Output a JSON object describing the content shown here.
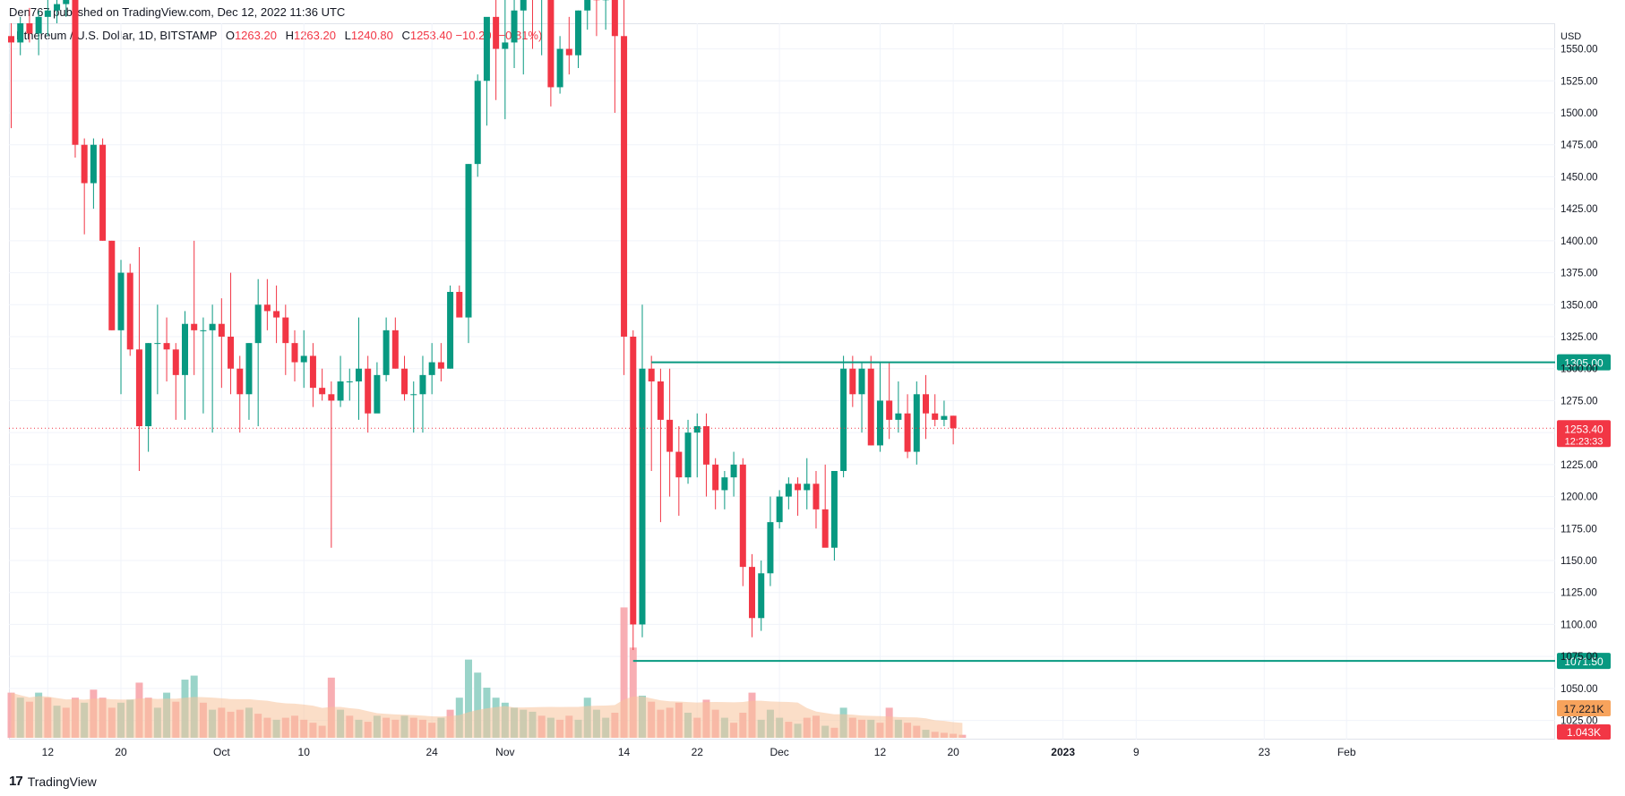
{
  "header": {
    "published": "Den767 published on TradingView.com, Dec 12, 2022 11:36 UTC"
  },
  "legend": {
    "symbol": "Ethereum / U.S. Dollar, 1D, BITSTAMP",
    "o_label": "O",
    "o": "1263.20",
    "h_label": "H",
    "h": "1263.20",
    "l_label": "L",
    "l": "1240.80",
    "c_label": "C",
    "c": "1253.40",
    "change": "−10.20 (−0.81%)"
  },
  "footer": {
    "brand": "TradingView",
    "brand_icon": "tradingview-logo-icon"
  },
  "colors": {
    "up": "#089981",
    "down": "#f23645",
    "level": "#089981",
    "vol_up": "#8fcfc3",
    "vol_down": "#f7a5ab",
    "vol_ma": "#f7c39a"
  },
  "chart_data": {
    "type": "candlestick",
    "currency": "USD",
    "y_range": [
      1010,
      1570
    ],
    "y_ticks": [
      "1550.00",
      "1525.00",
      "1500.00",
      "1475.00",
      "1450.00",
      "1425.00",
      "1400.00",
      "1375.00",
      "1350.00",
      "1325.00",
      "1300.00",
      "1275.00",
      "1250.00",
      "1225.00",
      "1200.00",
      "1175.00",
      "1150.00",
      "1125.00",
      "1100.00",
      "1075.00",
      "1050.00",
      "1025.00"
    ],
    "y_tick_values": [
      1550,
      1525,
      1500,
      1475,
      1450,
      1425,
      1400,
      1375,
      1350,
      1325,
      1300,
      1275,
      1250,
      1225,
      1200,
      1175,
      1150,
      1125,
      1100,
      1075,
      1050,
      1025
    ],
    "x_ticks": [
      {
        "label": "12",
        "date": "2022-09-12"
      },
      {
        "label": "20",
        "date": "2022-09-20"
      },
      {
        "label": "Oct",
        "date": "2022-10-01"
      },
      {
        "label": "10",
        "date": "2022-10-10"
      },
      {
        "label": "24",
        "date": "2022-10-24"
      },
      {
        "label": "Nov",
        "date": "2022-11-01"
      },
      {
        "label": "14",
        "date": "2022-11-14"
      },
      {
        "label": "22",
        "date": "2022-11-22"
      },
      {
        "label": "Dec",
        "date": "2022-12-01"
      },
      {
        "label": "12",
        "date": "2022-12-12"
      },
      {
        "label": "20",
        "date": "2022-12-20"
      },
      {
        "label": "2023",
        "date": "2023-01-01"
      },
      {
        "label": "9",
        "date": "2023-01-09"
      },
      {
        "label": "23",
        "date": "2023-01-23"
      },
      {
        "label": "Feb",
        "date": "2023-02-01"
      }
    ],
    "first_date": "2022-09-08",
    "candles": [
      [
        1560,
        1570,
        1488,
        1555
      ],
      [
        1555,
        1575,
        1545,
        1570
      ],
      [
        1570,
        1582,
        1555,
        1562
      ],
      [
        1562,
        1580,
        1545,
        1575
      ],
      [
        1575,
        1590,
        1560,
        1580
      ],
      [
        1580,
        1598,
        1570,
        1585
      ],
      [
        1585,
        1600,
        1575,
        1590
      ],
      [
        1590,
        1605,
        1465,
        1475
      ],
      [
        1475,
        1480,
        1405,
        1445
      ],
      [
        1445,
        1480,
        1425,
        1475
      ],
      [
        1475,
        1480,
        1400,
        1400
      ],
      [
        1400,
        1400,
        1330,
        1330
      ],
      [
        1330,
        1385,
        1280,
        1375
      ],
      [
        1375,
        1382,
        1310,
        1315
      ],
      [
        1315,
        1395,
        1220,
        1255
      ],
      [
        1255,
        1320,
        1235,
        1320
      ],
      [
        1320,
        1350,
        1280,
        1320
      ],
      [
        1320,
        1340,
        1290,
        1315
      ],
      [
        1315,
        1320,
        1260,
        1295
      ],
      [
        1295,
        1345,
        1260,
        1335
      ],
      [
        1335,
        1400,
        1295,
        1330
      ],
      [
        1330,
        1340,
        1265,
        1330
      ],
      [
        1330,
        1350,
        1250,
        1335
      ],
      [
        1335,
        1355,
        1285,
        1325
      ],
      [
        1325,
        1375,
        1280,
        1300
      ],
      [
        1300,
        1310,
        1250,
        1280
      ],
      [
        1280,
        1320,
        1260,
        1320
      ],
      [
        1320,
        1370,
        1255,
        1350
      ],
      [
        1350,
        1370,
        1330,
        1345
      ],
      [
        1345,
        1365,
        1320,
        1340
      ],
      [
        1340,
        1350,
        1295,
        1320
      ],
      [
        1320,
        1330,
        1290,
        1305
      ],
      [
        1305,
        1330,
        1285,
        1310
      ],
      [
        1310,
        1320,
        1270,
        1285
      ],
      [
        1285,
        1300,
        1275,
        1280
      ],
      [
        1280,
        1290,
        1160,
        1275
      ],
      [
        1275,
        1310,
        1270,
        1290
      ],
      [
        1290,
        1300,
        1275,
        1290
      ],
      [
        1290,
        1340,
        1260,
        1300
      ],
      [
        1300,
        1310,
        1250,
        1265
      ],
      [
        1265,
        1305,
        1270,
        1295
      ],
      [
        1295,
        1340,
        1290,
        1330
      ],
      [
        1330,
        1340,
        1300,
        1300
      ],
      [
        1300,
        1310,
        1275,
        1280
      ],
      [
        1280,
        1290,
        1250,
        1280
      ],
      [
        1280,
        1310,
        1250,
        1295
      ],
      [
        1295,
        1320,
        1280,
        1305
      ],
      [
        1305,
        1320,
        1290,
        1300
      ],
      [
        1300,
        1365,
        1300,
        1360
      ],
      [
        1360,
        1365,
        1345,
        1340
      ],
      [
        1340,
        1460,
        1320,
        1460
      ],
      [
        1460,
        1530,
        1450,
        1525
      ],
      [
        1525,
        1570,
        1490,
        1575
      ],
      [
        1575,
        1600,
        1510,
        1550
      ],
      [
        1550,
        1600,
        1495,
        1555
      ],
      [
        1555,
        1590,
        1535,
        1580
      ],
      [
        1580,
        1600,
        1530,
        1600
      ],
      [
        1600,
        1610,
        1550,
        1590
      ],
      [
        1590,
        1600,
        1545,
        1595
      ],
      [
        1595,
        1600,
        1505,
        1520
      ],
      [
        1520,
        1560,
        1515,
        1550
      ],
      [
        1550,
        1575,
        1530,
        1545
      ],
      [
        1545,
        1580,
        1535,
        1580
      ],
      [
        1580,
        1600,
        1565,
        1595
      ],
      [
        1595,
        1600,
        1560,
        1588
      ],
      [
        1588,
        1600,
        1565,
        1595
      ],
      [
        1595,
        1600,
        1500,
        1560
      ],
      [
        1560,
        1590,
        1295,
        1325
      ],
      [
        1325,
        1330,
        1080,
        1100
      ],
      [
        1100,
        1350,
        1090,
        1300
      ],
      [
        1300,
        1310,
        1220,
        1290
      ],
      [
        1290,
        1300,
        1180,
        1260
      ],
      [
        1260,
        1300,
        1200,
        1235
      ],
      [
        1235,
        1255,
        1185,
        1215
      ],
      [
        1215,
        1260,
        1210,
        1250
      ],
      [
        1250,
        1265,
        1215,
        1255
      ],
      [
        1255,
        1265,
        1200,
        1225
      ],
      [
        1225,
        1230,
        1190,
        1205
      ],
      [
        1205,
        1220,
        1190,
        1215
      ],
      [
        1215,
        1235,
        1200,
        1225
      ],
      [
        1225,
        1230,
        1130,
        1145
      ],
      [
        1145,
        1155,
        1090,
        1105
      ],
      [
        1105,
        1150,
        1095,
        1140
      ],
      [
        1140,
        1200,
        1130,
        1180
      ],
      [
        1180,
        1205,
        1175,
        1200
      ],
      [
        1200,
        1215,
        1190,
        1210
      ],
      [
        1210,
        1215,
        1185,
        1205
      ],
      [
        1205,
        1230,
        1190,
        1210
      ],
      [
        1210,
        1220,
        1175,
        1190
      ],
      [
        1190,
        1225,
        1165,
        1160
      ],
      [
        1160,
        1220,
        1150,
        1220
      ],
      [
        1220,
        1310,
        1215,
        1300
      ],
      [
        1300,
        1310,
        1270,
        1280
      ],
      [
        1280,
        1305,
        1250,
        1300
      ],
      [
        1300,
        1310,
        1240,
        1240
      ],
      [
        1240,
        1305,
        1235,
        1275
      ],
      [
        1275,
        1305,
        1245,
        1260
      ],
      [
        1260,
        1290,
        1250,
        1265
      ],
      [
        1265,
        1280,
        1230,
        1235
      ],
      [
        1235,
        1290,
        1225,
        1280
      ],
      [
        1280,
        1295,
        1245,
        1265
      ],
      [
        1265,
        1280,
        1255,
        1260
      ],
      [
        1260,
        1275,
        1255,
        1263
      ],
      [
        1263.2,
        1263.2,
        1240.8,
        1253.4
      ]
    ],
    "volume_range": [
      0,
      200
    ],
    "volume": [
      [
        45,
        0
      ],
      [
        40,
        1
      ],
      [
        36,
        0
      ],
      [
        45,
        1
      ],
      [
        40,
        0
      ],
      [
        32,
        1
      ],
      [
        30,
        0
      ],
      [
        40,
        0
      ],
      [
        35,
        1
      ],
      [
        48,
        0
      ],
      [
        40,
        0
      ],
      [
        30,
        0
      ],
      [
        35,
        1
      ],
      [
        38,
        1
      ],
      [
        55,
        0
      ],
      [
        40,
        0
      ],
      [
        30,
        1
      ],
      [
        45,
        1
      ],
      [
        36,
        0
      ],
      [
        58,
        1
      ],
      [
        62,
        1
      ],
      [
        35,
        0
      ],
      [
        28,
        1
      ],
      [
        30,
        0
      ],
      [
        26,
        0
      ],
      [
        28,
        0
      ],
      [
        30,
        1
      ],
      [
        24,
        0
      ],
      [
        20,
        0
      ],
      [
        18,
        1
      ],
      [
        20,
        0
      ],
      [
        22,
        0
      ],
      [
        18,
        0
      ],
      [
        15,
        0
      ],
      [
        12,
        0
      ],
      [
        60,
        0
      ],
      [
        28,
        1
      ],
      [
        22,
        0
      ],
      [
        18,
        1
      ],
      [
        16,
        0
      ],
      [
        22,
        1
      ],
      [
        20,
        0
      ],
      [
        18,
        0
      ],
      [
        22,
        1
      ],
      [
        20,
        0
      ],
      [
        18,
        0
      ],
      [
        15,
        0
      ],
      [
        20,
        1
      ],
      [
        28,
        0
      ],
      [
        40,
        1
      ],
      [
        78,
        1
      ],
      [
        65,
        1
      ],
      [
        50,
        1
      ],
      [
        40,
        1
      ],
      [
        35,
        1
      ],
      [
        30,
        1
      ],
      [
        28,
        1
      ],
      [
        26,
        1
      ],
      [
        22,
        0
      ],
      [
        20,
        1
      ],
      [
        18,
        0
      ],
      [
        22,
        0
      ],
      [
        18,
        1
      ],
      [
        40,
        1
      ],
      [
        28,
        1
      ],
      [
        20,
        1
      ],
      [
        25,
        0
      ],
      [
        130,
        0
      ],
      [
        90,
        0
      ],
      [
        42,
        1
      ],
      [
        36,
        0
      ],
      [
        28,
        0
      ],
      [
        30,
        0
      ],
      [
        35,
        0
      ],
      [
        25,
        1
      ],
      [
        20,
        0
      ],
      [
        38,
        0
      ],
      [
        28,
        0
      ],
      [
        20,
        1
      ],
      [
        15,
        0
      ],
      [
        25,
        0
      ],
      [
        45,
        0
      ],
      [
        18,
        1
      ],
      [
        28,
        1
      ],
      [
        20,
        1
      ],
      [
        16,
        0
      ],
      [
        14,
        1
      ],
      [
        20,
        0
      ],
      [
        22,
        0
      ],
      [
        12,
        1
      ],
      [
        10,
        0
      ],
      [
        30,
        1
      ],
      [
        20,
        0
      ],
      [
        18,
        0
      ],
      [
        18,
        1
      ],
      [
        15,
        0
      ],
      [
        30,
        0
      ],
      [
        18,
        1
      ],
      [
        15,
        0
      ],
      [
        12,
        0
      ],
      [
        8,
        1
      ],
      [
        6,
        0
      ],
      [
        5,
        0
      ],
      [
        4,
        0
      ],
      [
        3,
        0
      ]
    ],
    "levels": [
      {
        "value": 1305,
        "label": "1305.00",
        "start_index": 70
      },
      {
        "value": 1071.5,
        "label": "1071.50",
        "start_index": 68
      }
    ],
    "last_price": {
      "value": 1253.4,
      "label": "1253.40",
      "countdown": "12:23:33"
    },
    "volume_ma_label": "17.221K",
    "volume_last_label": "1.043K"
  }
}
